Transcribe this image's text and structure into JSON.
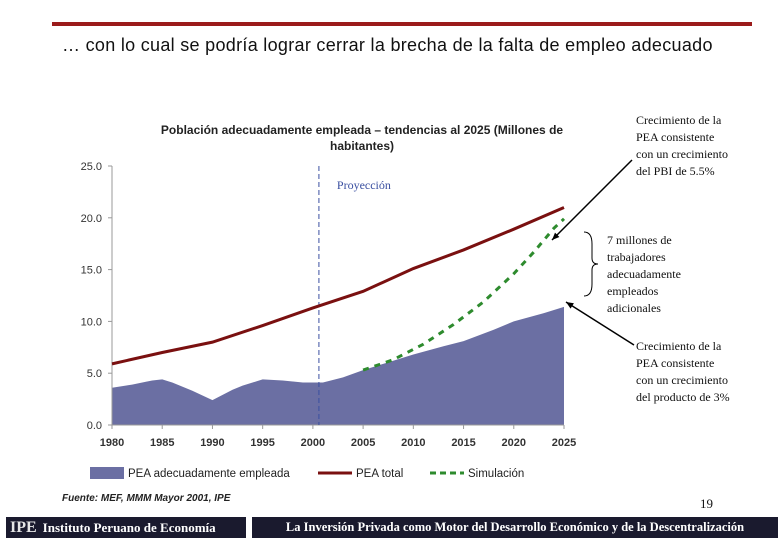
{
  "slide": {
    "title": "… con lo cual se podría lograr cerrar la brecha de la falta de empleo adecuado",
    "source": "Fuente: MEF, MMM Mayor 2001, IPE",
    "page_number": "19",
    "footer_logo_abbr": "IPE",
    "footer_logo_name": "Instituto Peruano de Economía",
    "footer_title": "La Inversión Privada como Motor del Desarrollo Económico y de la Descentralización",
    "colors": {
      "topbar": "#9b1b1b",
      "area": "#6b6fa3",
      "pea_total": "#7a1010",
      "simulacion": "#2e8b2e",
      "footer_bg": "#1a1a2e"
    }
  },
  "annotations": {
    "upper": "Crecimiento de la PEA consistente con un crecimiento del PBI de 5.5%",
    "middle": "7 millones de trabajadores adecuadamente empleados adicionales",
    "lower": "Crecimiento de la PEA consistente con un crecimiento del producto de 3%"
  },
  "chart_data": {
    "type": "area",
    "title": "Población adecuadamente empleada – tendencias al 2025 (Millones de habitantes)",
    "xlabel": "",
    "ylabel": "",
    "xlim": [
      1980,
      2025
    ],
    "ylim": [
      0,
      25
    ],
    "x_ticks": [
      "1980",
      "1985",
      "1990",
      "1995",
      "2000",
      "2005",
      "2010",
      "2015",
      "2020",
      "2025"
    ],
    "y_ticks": [
      "0.0",
      "5.0",
      "10.0",
      "15.0",
      "20.0",
      "25.0"
    ],
    "projection_year": 2000.6,
    "projection_label": "Proyección",
    "series": [
      {
        "name": "PEA adecuadamente empleada",
        "kind": "area",
        "x": [
          1980,
          1982,
          1984,
          1985,
          1986,
          1988,
          1990,
          1992,
          1993,
          1995,
          1997,
          1999,
          2001,
          2003,
          2005,
          2007,
          2010,
          2013,
          2015,
          2018,
          2020,
          2023,
          2025
        ],
        "values": [
          3.6,
          3.9,
          4.3,
          4.4,
          4.1,
          3.3,
          2.4,
          3.4,
          3.8,
          4.4,
          4.3,
          4.1,
          4.1,
          4.6,
          5.3,
          5.9,
          6.8,
          7.6,
          8.1,
          9.2,
          10.0,
          10.8,
          11.4
        ]
      },
      {
        "name": "PEA total",
        "kind": "line",
        "x": [
          1980,
          1985,
          1990,
          1995,
          2000,
          2005,
          2010,
          2015,
          2020,
          2025
        ],
        "values": [
          5.9,
          7.0,
          8.0,
          9.6,
          11.3,
          12.9,
          15.1,
          16.9,
          18.9,
          21.0
        ]
      },
      {
        "name": "Simulación",
        "kind": "dashed",
        "x": [
          2005,
          2008,
          2011,
          2014,
          2017,
          2020,
          2022,
          2024,
          2025
        ],
        "values": [
          5.3,
          6.3,
          7.8,
          9.7,
          11.9,
          14.6,
          16.7,
          19.0,
          19.9
        ]
      }
    ],
    "legend_position": "bottom"
  }
}
